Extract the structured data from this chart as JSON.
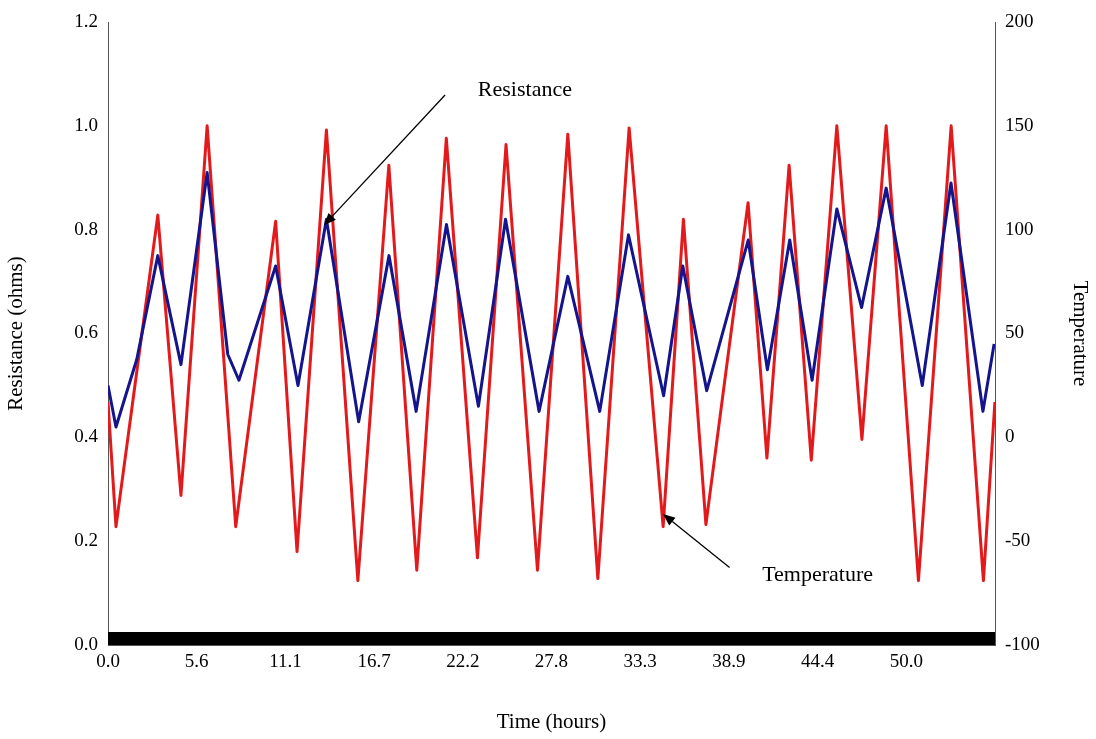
{
  "chart_data": {
    "type": "line",
    "xlabel": "Time (hours)",
    "ylabel": "Resistance (ohms)",
    "y2label": "Temperature",
    "xlim": [
      0,
      55.556
    ],
    "xticks": [
      {
        "value": 0,
        "label": "0.0"
      },
      {
        "value": 5.5556,
        "label": "5.6"
      },
      {
        "value": 11.1111,
        "label": "11.1"
      },
      {
        "value": 16.6667,
        "label": "16.7"
      },
      {
        "value": 22.2222,
        "label": "22.2"
      },
      {
        "value": 27.7778,
        "label": "27.8"
      },
      {
        "value": 33.3333,
        "label": "33.3"
      },
      {
        "value": 38.8889,
        "label": "38.9"
      },
      {
        "value": 44.4444,
        "label": "44.4"
      },
      {
        "value": 50,
        "label": "50.0"
      }
    ],
    "ylim": [
      0,
      1.2
    ],
    "yticks": [
      {
        "value": 0,
        "label": "0.0"
      },
      {
        "value": 0.2,
        "label": "0.2"
      },
      {
        "value": 0.4,
        "label": "0.4"
      },
      {
        "value": 0.6,
        "label": "0.6"
      },
      {
        "value": 0.8,
        "label": "0.8"
      },
      {
        "value": 1.0,
        "label": "1.0"
      },
      {
        "value": 1.2,
        "label": "1.2"
      }
    ],
    "y2lim": [
      -100,
      200
    ],
    "y2ticks": [
      -100,
      -50,
      0,
      50,
      100,
      150,
      200
    ],
    "marker": "none",
    "series": [
      {
        "color": "#e31a1c",
        "axis": "y2",
        "x": [
          0,
          0.5,
          3.12,
          4.57,
          6.21,
          8.0,
          10.5,
          11.84,
          13.68,
          15.65,
          17.59,
          19.34,
          21.19,
          23.14,
          24.93,
          26.9,
          28.8,
          30.68,
          32.64,
          34.77,
          36.04,
          37.45,
          40.09,
          41.27,
          42.66,
          44.05,
          45.65,
          47.22,
          48.74,
          50.76,
          52.81,
          54.83,
          55.55
        ],
        "values": [
          17,
          -43,
          107,
          -28,
          150,
          -43,
          104,
          -55,
          148,
          -69,
          131,
          -64,
          144,
          -58,
          141,
          -64,
          146,
          -68,
          149,
          -43,
          105,
          -42,
          113,
          -10,
          131,
          -11,
          150,
          -1,
          150,
          -69,
          150,
          -69,
          17
        ]
      },
      {
        "color": "#14148c",
        "axis": "y",
        "x": [
          0,
          0.5,
          1.8,
          3.12,
          4.57,
          6.21,
          7.5,
          8.2,
          10.5,
          11.9,
          13.68,
          15.7,
          17.6,
          19.3,
          21.2,
          23.2,
          24.9,
          27.0,
          28.8,
          30.8,
          32.6,
          34.8,
          36.0,
          37.5,
          40.1,
          41.3,
          42.7,
          44.1,
          45.65,
          47.2,
          48.74,
          51.0,
          52.8,
          54.8,
          55.5
        ],
        "values": [
          0.5,
          0.42,
          0.55,
          0.75,
          0.54,
          0.91,
          0.56,
          0.51,
          0.73,
          0.5,
          0.82,
          0.43,
          0.75,
          0.45,
          0.81,
          0.46,
          0.82,
          0.45,
          0.71,
          0.45,
          0.79,
          0.48,
          0.73,
          0.49,
          0.78,
          0.53,
          0.78,
          0.51,
          0.84,
          0.65,
          0.88,
          0.5,
          0.89,
          0.45,
          0.58
        ]
      }
    ],
    "bands": [
      {
        "axis": "y",
        "from": 0,
        "to": 0.025,
        "color": "#000000"
      }
    ],
    "annotations": [
      "Resistance",
      "Temperature"
    ]
  }
}
